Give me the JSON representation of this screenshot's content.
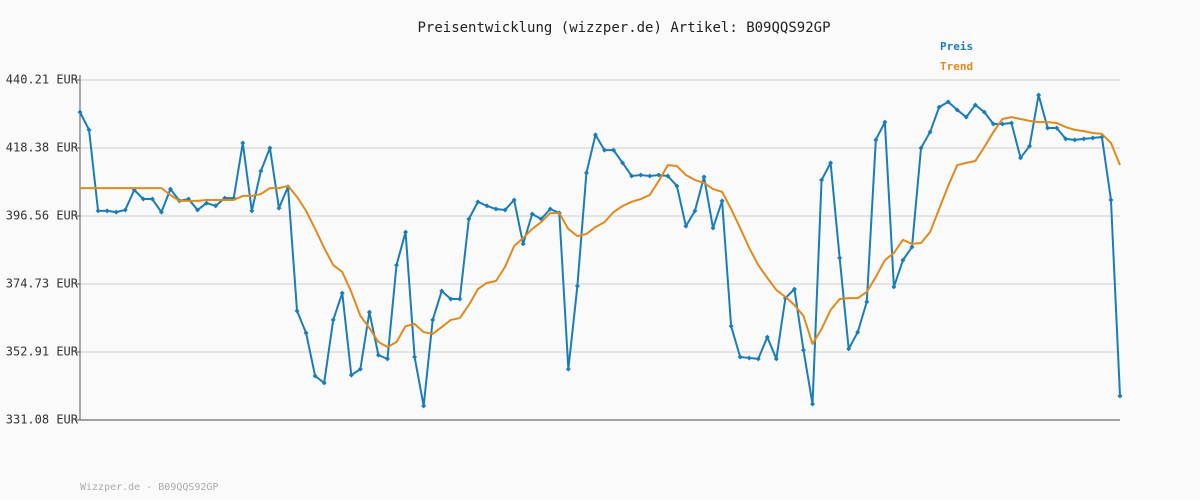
{
  "chart_data": {
    "type": "line",
    "title": "Preisentwicklung (wizzper.de) Artikel: B09QQS92GP",
    "footer": "Wizzper.de - B09QQS92GP",
    "legend": "top-right",
    "grid": true,
    "markers": true,
    "ylim": [
      331.08,
      440.21
    ],
    "yticks": [
      {
        "value": 331.08,
        "label": "331.08 EUR"
      },
      {
        "value": 352.91,
        "label": "352.91 EUR"
      },
      {
        "value": 374.73,
        "label": "374.73 EUR"
      },
      {
        "value": 396.56,
        "label": "396.56 EUR"
      },
      {
        "value": 418.38,
        "label": "418.38 EUR"
      },
      {
        "value": 440.21,
        "label": "440.21 EUR"
      }
    ],
    "series": [
      {
        "name": "Preis",
        "color": "#1a7db8",
        "values": [
          429.9,
          424.2,
          398.2,
          398.2,
          397.8,
          398.5,
          404.9,
          402.0,
          402.0,
          397.8,
          405.2,
          401.4,
          402.0,
          398.5,
          400.7,
          399.8,
          402.3,
          402.3,
          420.0,
          398.2,
          411.0,
          418.4,
          399.1,
          405.9,
          366.1,
          359.0,
          345.2,
          343.0,
          363.2,
          371.8,
          345.5,
          347.4,
          365.7,
          351.9,
          350.7,
          380.8,
          391.4,
          351.3,
          335.6,
          363.2,
          372.5,
          369.9,
          369.9,
          395.6,
          401.1,
          399.8,
          398.8,
          398.5,
          401.7,
          387.6,
          397.2,
          395.6,
          398.8,
          397.5,
          347.4,
          374.1,
          410.4,
          422.6,
          417.7,
          417.7,
          413.6,
          409.4,
          409.7,
          409.4,
          409.7,
          409.4,
          406.2,
          393.3,
          398.2,
          409.1,
          392.7,
          401.4,
          361.2,
          351.3,
          351.0,
          350.7,
          357.7,
          350.7,
          370.2,
          373.1,
          353.5,
          336.2,
          408.1,
          413.6,
          383.1,
          353.9,
          359.3,
          369.0,
          421.0,
          426.7,
          373.8,
          382.4,
          386.6,
          418.4,
          423.5,
          431.5,
          433.2,
          430.6,
          428.3,
          432.2,
          429.9,
          426.1,
          426.1,
          426.4,
          415.2,
          419.0,
          435.4,
          424.8,
          424.8,
          421.3,
          421.0,
          421.3,
          421.6,
          421.9,
          401.7,
          338.8
        ]
      },
      {
        "name": "Trend",
        "color": "#e08a1e",
        "values": [
          405.5,
          405.5,
          405.5,
          405.5,
          405.5,
          405.5,
          405.5,
          405.5,
          405.5,
          405.5,
          403.3,
          401.4,
          401.4,
          401.4,
          401.7,
          401.7,
          401.7,
          401.7,
          403.0,
          403.0,
          403.6,
          405.5,
          405.5,
          406.2,
          402.7,
          398.2,
          392.4,
          386.3,
          380.8,
          378.6,
          372.2,
          364.5,
          360.6,
          356.1,
          354.5,
          356.1,
          361.2,
          361.9,
          359.3,
          358.7,
          360.9,
          363.2,
          363.8,
          368.0,
          373.1,
          375.1,
          375.7,
          380.2,
          386.9,
          389.5,
          392.4,
          394.6,
          397.5,
          397.5,
          392.4,
          390.1,
          390.8,
          393.0,
          394.6,
          397.8,
          399.8,
          401.1,
          402.0,
          403.3,
          407.8,
          412.9,
          412.6,
          409.7,
          408.1,
          407.2,
          405.2,
          404.3,
          398.8,
          392.7,
          386.3,
          380.8,
          376.7,
          372.8,
          370.6,
          368.0,
          364.5,
          355.5,
          360.3,
          366.4,
          369.9,
          370.2,
          370.2,
          372.2,
          377.0,
          382.4,
          384.7,
          388.9,
          387.6,
          387.9,
          391.4,
          398.8,
          406.2,
          412.9,
          413.6,
          414.2,
          418.7,
          423.5,
          427.7,
          428.3,
          427.7,
          427.1,
          426.7,
          426.7,
          426.4,
          425.1,
          424.2,
          423.8,
          423.2,
          422.9,
          420.0,
          412.9
        ]
      }
    ]
  }
}
